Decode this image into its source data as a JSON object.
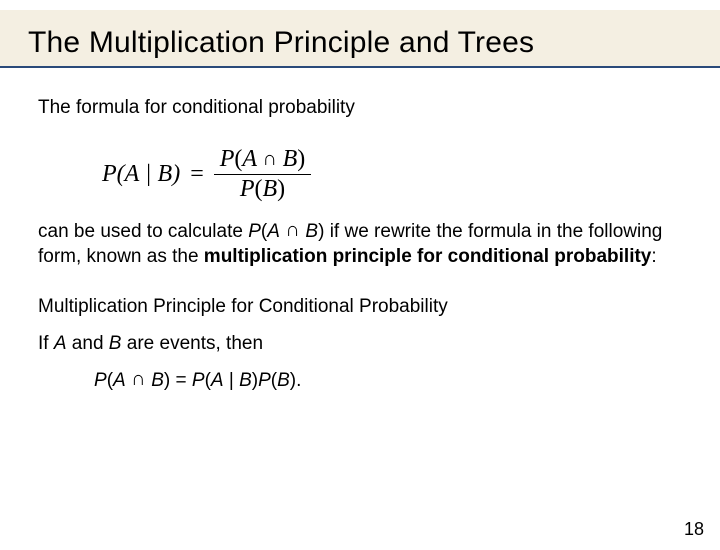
{
  "title": "The Multiplication Principle and Trees",
  "intro": "The formula for conditional probability",
  "formula": {
    "lhs_p": "P",
    "lhs_open": "(",
    "lhs_a": "A",
    "lhs_bar": " | ",
    "lhs_b": "B",
    "lhs_close": ")",
    "eq": "=",
    "num_p": "P",
    "num_open": "(",
    "num_a": "A",
    "num_cap": " ∩ ",
    "num_b": "B",
    "num_close": ")",
    "den_p": "P",
    "den_open": "(",
    "den_b": "B",
    "den_close": ")"
  },
  "para2_a": "can be used to calculate ",
  "para2_expr_p": "P",
  "para2_expr_open": "(",
  "para2_expr_a": "A",
  "para2_expr_cap": " ∩ ",
  "para2_expr_b": "B",
  "para2_expr_close": ")",
  "para2_b": " if we rewrite the formula in the following form, known as the ",
  "para2_bold": "multiplication principle for conditional probability",
  "para2_c": ":",
  "principle_head": "Multiplication Principle for Conditional Probability",
  "principle_if_a": "If ",
  "principle_if_A": "A",
  "principle_if_b": " and ",
  "principle_if_B": "B",
  "principle_if_c": " are events, then",
  "principle_eq_p1": "P",
  "principle_eq_open1": "(",
  "principle_eq_a": "A",
  "principle_eq_cap": " ∩ ",
  "principle_eq_b": "B",
  "principle_eq_close1": ")",
  "principle_eq_eq": " = ",
  "principle_eq_p2": "P",
  "principle_eq_open2": "(",
  "principle_eq_a2": "A",
  "principle_eq_bar": " | ",
  "principle_eq_b2": "B",
  "principle_eq_close2": ")",
  "principle_eq_p3": "P",
  "principle_eq_open3": "(",
  "principle_eq_b3": "B",
  "principle_eq_close3": ").",
  "page_number": "18",
  "colors": {
    "title_band_bg": "#f4efe2",
    "title_underline": "#2a4a7a",
    "text": "#000000",
    "background": "#ffffff"
  }
}
